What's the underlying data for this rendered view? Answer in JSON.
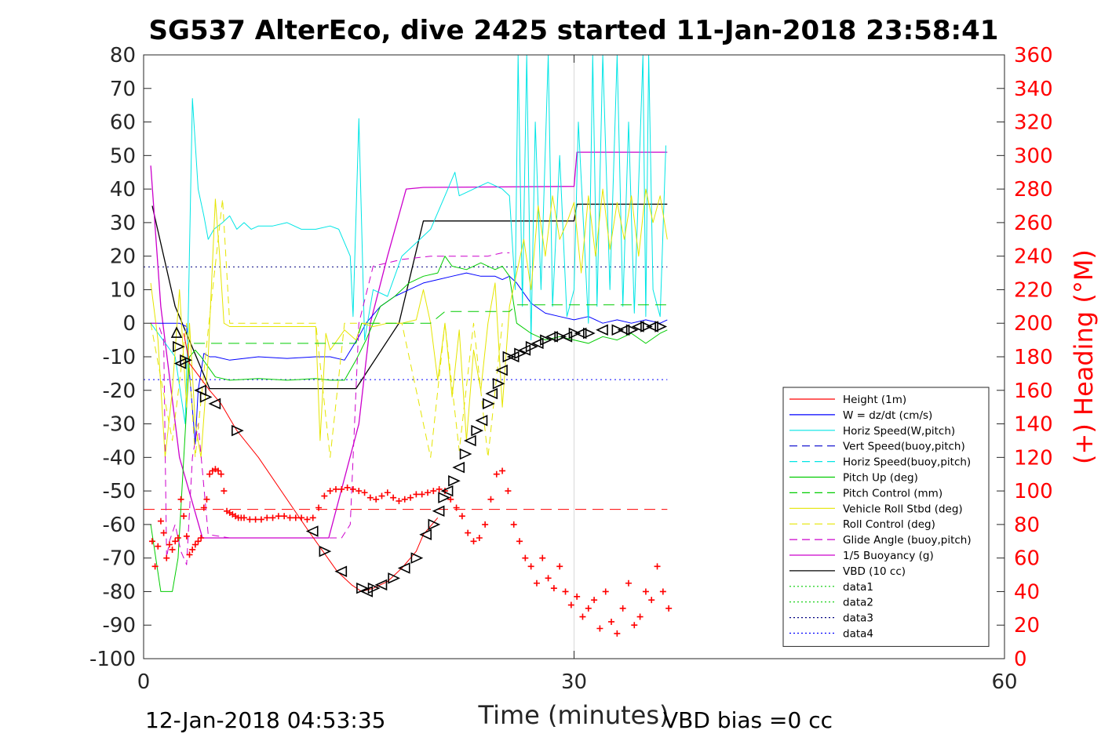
{
  "chart_data": {
    "type": "line",
    "title": "SG537 AlterEco, dive 2425 started 11-Jan-2018 23:58:41",
    "xlabel": "Time (minutes)",
    "ylabel_right": "(+) Heading (°M)",
    "xlim": [
      0,
      60
    ],
    "ylim_left": [
      -100,
      80
    ],
    "ylim_right": [
      0,
      360
    ],
    "x_ticks": [
      "0",
      "30",
      "60"
    ],
    "y_ticks_left": [
      "80",
      "70",
      "60",
      "50",
      "40",
      "30",
      "20",
      "10",
      "0",
      "-10",
      "-20",
      "-30",
      "-40",
      "-50",
      "-60",
      "-70",
      "-80",
      "-90",
      "-100"
    ],
    "y_ticks_right": [
      "360",
      "340",
      "320",
      "300",
      "280",
      "260",
      "240",
      "220",
      "200",
      "180",
      "160",
      "140",
      "120",
      "100",
      "80",
      "60",
      "40",
      "20",
      "0"
    ],
    "grid": "x-only",
    "legend_position": "lower-right",
    "footer_left": "12-Jan-2018 04:53:35",
    "footer_right": "VBD bias =0 cc",
    "legend": [
      {
        "label": "Height (1m)",
        "color": "#ff0000",
        "dash": "solid"
      },
      {
        "label": "W = dz/dt (cm/s)",
        "color": "#0000ff",
        "dash": "solid"
      },
      {
        "label": "Horiz Speed(W,pitch)",
        "color": "#00e5e5",
        "dash": "solid"
      },
      {
        "label": "Vert Speed(buoy,pitch)",
        "color": "#0000cc",
        "dash": "dashed"
      },
      {
        "label": "Horiz Speed(buoy,pitch)",
        "color": "#00e5e5",
        "dash": "dashed"
      },
      {
        "label": "Pitch Up (deg)",
        "color": "#00cc00",
        "dash": "solid"
      },
      {
        "label": "Pitch Control (mm)",
        "color": "#00cc00",
        "dash": "dashed"
      },
      {
        "label": "Vehicle Roll Stbd (deg)",
        "color": "#e5e500",
        "dash": "solid"
      },
      {
        "label": "Roll Control (deg)",
        "color": "#e5e500",
        "dash": "dashed"
      },
      {
        "label": "Glide Angle (buoy,pitch)",
        "color": "#cc00cc",
        "dash": "dashed"
      },
      {
        "label": "1/5 Buoyancy (g)",
        "color": "#cc00cc",
        "dash": "solid"
      },
      {
        "label": "VBD (10 cc)",
        "color": "#000000",
        "dash": "solid"
      },
      {
        "label": "data1",
        "color": "#00cc00",
        "dash": "dotted"
      },
      {
        "label": "data2",
        "color": "#00cc00",
        "dash": "dotted"
      },
      {
        "label": "data3",
        "color": "#000080",
        "dash": "dotted"
      },
      {
        "label": "data4",
        "color": "#0000ff",
        "dash": "dotted"
      }
    ],
    "series": [
      {
        "key": "vbd",
        "color": "#000000",
        "width": 1.3,
        "x": [
          0.6,
          2.2,
          4.6,
          12.0,
          14.8,
          17.8,
          19.5,
          30.0,
          30.2,
          36.5
        ],
        "y": [
          35,
          5,
          -19.5,
          -19.5,
          -19.5,
          0,
          30.5,
          30.5,
          35.5,
          35.5
        ]
      },
      {
        "key": "buoyancy",
        "color": "#cc00cc",
        "width": 1.3,
        "x": [
          0.5,
          1.2,
          2.5,
          4.1,
          10.0,
          12.9,
          15.0,
          15.8,
          17.0,
          18.3,
          19.5,
          30.0,
          30.2,
          36.5
        ],
        "y": [
          47,
          5,
          -40,
          -64,
          -64,
          -64,
          -30,
          0,
          20,
          40,
          40.5,
          40.8,
          51,
          51
        ]
      },
      {
        "key": "w",
        "color": "#0000ff",
        "width": 1.0,
        "x": [
          0.5,
          2.5,
          3.0,
          3.2,
          3.6,
          3.8,
          4.2,
          4.6,
          5.0,
          6.0,
          8.0,
          10.0,
          12.0,
          13.0,
          14.0,
          15.0,
          15.5,
          16.5,
          17.5,
          18.5,
          19.5,
          20.5,
          21.5,
          22.5,
          23.5,
          24.5,
          25.0,
          25.5,
          26.0,
          27.0,
          28.0,
          29.0,
          30.0,
          31.0,
          32.0,
          33.0,
          34.0,
          35.0,
          36.0,
          36.5
        ],
        "y": [
          0,
          0,
          -1,
          -15,
          -36,
          -20,
          -9,
          -10,
          -10,
          -11,
          -10,
          -10.5,
          -10,
          -10,
          -11,
          -4,
          0,
          5,
          8,
          10,
          12,
          13,
          14,
          15,
          14,
          14,
          13,
          14,
          12,
          6,
          3,
          2,
          1,
          2,
          0,
          1,
          0,
          1,
          0,
          1
        ]
      },
      {
        "key": "horiz_w",
        "color": "#00e5e5",
        "width": 1.0,
        "x": [
          0.5,
          2.2,
          2.9,
          3.1,
          3.4,
          3.8,
          4.2,
          4.5,
          4.9,
          5.5,
          6.0,
          6.5,
          7.0,
          7.5,
          8.0,
          9.0,
          10.0,
          11.0,
          12.0,
          13.0,
          13.6,
          14.4,
          14.6,
          15.0,
          15.4,
          16.0,
          17.0,
          18.0,
          19.0,
          20.0,
          21.0,
          21.7,
          22.0,
          23.0,
          24.0,
          25.0,
          25.5,
          25.9,
          26.1,
          26.4,
          26.7,
          27.0,
          27.3,
          27.7,
          28.2,
          28.5,
          29.0,
          29.5,
          30.0,
          30.3,
          31.0,
          31.3,
          31.6,
          32.0,
          32.5,
          33.0,
          33.4,
          33.8,
          34.2,
          34.8,
          35.0,
          35.2,
          35.5,
          36.0,
          36.4
        ],
        "y": [
          0,
          -10,
          -30,
          0,
          67,
          40,
          32,
          25,
          28,
          30,
          32,
          28,
          30,
          28,
          29,
          29,
          30,
          28,
          28,
          29,
          28,
          20,
          2,
          61,
          -5,
          10,
          8,
          20,
          24,
          28,
          38,
          45,
          38,
          40,
          42,
          40,
          38,
          10,
          80,
          5,
          80,
          -5,
          60,
          10,
          80,
          5,
          50,
          2,
          10,
          60,
          0,
          80,
          5,
          80,
          10,
          80,
          5,
          60,
          3,
          80,
          2,
          80,
          10,
          2,
          53
        ]
      },
      {
        "key": "pitch",
        "color": "#00cc00",
        "width": 1.0,
        "x": [
          0.5,
          1.2,
          2.0,
          2.4,
          2.8,
          3.2,
          3.6,
          4.0,
          5.0,
          6.0,
          8.0,
          10.0,
          12.0,
          13.0,
          14.0,
          14.8,
          15.5,
          16.5,
          17.5,
          18.5,
          19.5,
          20.5,
          21.0,
          21.5,
          22.5,
          23.5,
          24.5,
          25.0,
          25.5,
          26.0,
          27.0,
          28.0,
          29.0,
          30.0,
          31.0,
          32.0,
          33.0,
          34.0,
          35.0,
          36.0,
          36.5
        ],
        "y": [
          -60,
          -80,
          -80,
          -70,
          -40,
          -10,
          -8,
          -10,
          -16,
          -17,
          -16.5,
          -17,
          -16.5,
          -17,
          -17,
          -11,
          -5,
          5,
          8,
          12,
          14,
          15,
          20,
          17,
          16,
          18,
          16,
          17,
          14,
          0,
          -3,
          -5,
          -4,
          -5,
          -6,
          -4,
          -5,
          -3,
          -6,
          -3,
          -2
        ]
      },
      {
        "key": "roll",
        "color": "#e5e500",
        "width": 1.0,
        "x": [
          0.5,
          1.0,
          1.5,
          2.0,
          2.5,
          3.0,
          3.2,
          3.6,
          4.0,
          4.5,
          4.8,
          5.0,
          5.3,
          5.6,
          6.0,
          6.5,
          7.0,
          8.0,
          10.0,
          12.0,
          12.3,
          12.7,
          13.0,
          14.0,
          14.8,
          15.2,
          16.0,
          17.0,
          18.0,
          19.0,
          19.5,
          20.0,
          20.5,
          21.0,
          21.5,
          22.0,
          22.5,
          23.0,
          23.5,
          24.0,
          24.5,
          25.0,
          25.5,
          26.0,
          26.5,
          27.0,
          27.5,
          28.0,
          28.5,
          29.0,
          29.5,
          30.0,
          30.5,
          31.0,
          31.5,
          32.0,
          32.5,
          33.0,
          33.5,
          34.0,
          34.5,
          35.0,
          35.5,
          36.0,
          36.5
        ],
        "y": [
          12,
          -5,
          -40,
          -20,
          10,
          -25,
          0,
          -30,
          -40,
          -10,
          18,
          37,
          20,
          0,
          -1,
          -1,
          -1,
          -1,
          -1,
          -1,
          -35,
          -3,
          -8,
          -2,
          -5,
          0,
          -1,
          0,
          0,
          1,
          10,
          0,
          -17,
          0,
          -22,
          -2,
          -35,
          -8,
          -20,
          0,
          12,
          -25,
          5,
          15,
          25,
          10,
          35,
          20,
          38,
          25,
          30,
          36,
          15,
          38,
          20,
          40,
          22,
          36,
          25,
          38,
          20,
          40,
          30,
          38,
          25
        ]
      },
      {
        "key": "glide",
        "color": "#cc00cc",
        "width": 1.0,
        "dash": "9,6",
        "x": [
          0.5,
          1.0,
          1.4,
          1.6,
          1.8,
          2.2,
          2.6,
          3.0,
          3.4,
          3.8,
          4.5,
          6.0,
          10.0,
          13.0,
          13.8,
          14.4,
          15.0,
          16.0,
          18.0,
          20.0,
          22.0,
          24.0,
          25.0,
          25.5
        ],
        "y": [
          0,
          0,
          -5,
          -70,
          -65,
          -60,
          -68,
          -72,
          -40,
          -30,
          -63,
          -64,
          -64,
          -64,
          -64,
          -60,
          0,
          17,
          19,
          20,
          20,
          20,
          21,
          21
        ]
      },
      {
        "key": "roll_ctrl",
        "color": "#e5e500",
        "width": 1.0,
        "dash": "9,6",
        "x": [
          0.5,
          2.0,
          3.0,
          3.6,
          4.5,
          5.5,
          6.0,
          8.0,
          12.0,
          13.0,
          14.0,
          15.0,
          16.0,
          18.0,
          20.0,
          21.0,
          22.0,
          23.0,
          24.0,
          25.0
        ],
        "y": [
          0,
          -35,
          0,
          -40,
          -2,
          37,
          0,
          0,
          0,
          -40,
          0,
          0,
          0,
          0,
          -40,
          0,
          -38,
          0,
          -40,
          0
        ]
      },
      {
        "key": "pitch_ctrl",
        "color": "#00cc00",
        "width": 1.0,
        "dash": "14,8",
        "x": [
          3.5,
          14.8,
          15.2,
          20.0,
          21.0,
          25.5,
          26.0,
          36.5
        ],
        "y": [
          -6,
          -6,
          0,
          0,
          3.5,
          3.5,
          5.5,
          5.5
        ]
      },
      {
        "key": "height_line",
        "color": "#ff0000",
        "width": 1.0,
        "x": [
          2.8,
          3.2,
          4.6,
          5.4,
          6.5,
          8.0,
          11.5,
          12.5,
          13.5,
          14.5,
          15.2,
          16.0,
          17.0,
          18.0,
          19.0,
          19.5,
          20.5
        ],
        "y": [
          -3,
          -12,
          -20,
          -24,
          -32,
          -40,
          -62,
          -68,
          -74,
          -78,
          -80,
          -79,
          -77,
          -73,
          -68,
          -63,
          -58
        ]
      }
    ],
    "hlines": [
      {
        "y": 16.8,
        "color": "#000080",
        "dash": "2,4"
      },
      {
        "y": -16.8,
        "color": "#0000ff",
        "dash": "2,4"
      },
      {
        "y": -55.5,
        "color": "#ff0000",
        "dash": "14,8"
      }
    ],
    "heading_points": {
      "color": "#ff0000",
      "x": [
        0.6,
        0.8,
        1.0,
        1.2,
        1.4,
        1.6,
        1.8,
        2.0,
        2.2,
        2.4,
        2.6,
        2.8,
        3.0,
        3.2,
        3.4,
        3.6,
        3.8,
        4.0,
        4.2,
        4.4,
        4.6,
        4.8,
        5.0,
        5.2,
        5.4,
        5.6,
        5.8,
        6.0,
        6.2,
        6.4,
        6.6,
        6.8,
        7.0,
        7.4,
        7.8,
        8.2,
        8.6,
        9.0,
        9.4,
        9.8,
        10.2,
        10.6,
        11.0,
        11.4,
        11.8,
        12.2,
        12.6,
        13.0,
        13.4,
        13.8,
        14.2,
        14.6,
        15.0,
        15.4,
        15.8,
        16.2,
        16.6,
        17.0,
        17.4,
        17.8,
        18.2,
        18.6,
        19.0,
        19.4,
        19.8,
        20.2,
        20.6,
        21.0,
        21.4,
        21.8,
        22.2,
        22.6,
        23.0,
        23.4,
        23.8,
        24.2,
        24.6,
        25.0,
        25.4,
        25.8,
        26.2,
        26.6,
        27.0,
        27.4,
        27.8,
        28.2,
        28.6,
        29.0,
        29.4,
        29.8,
        30.2,
        30.6,
        31.0,
        31.4,
        31.8,
        32.2,
        32.6,
        33.0,
        33.4,
        33.8,
        34.2,
        34.6,
        35.0,
        35.4,
        35.8,
        36.2,
        36.6
      ],
      "y": [
        70,
        55,
        67,
        82,
        75,
        60,
        68,
        65,
        70,
        72,
        95,
        85,
        73,
        62,
        65,
        68,
        70,
        72,
        90,
        95,
        110,
        112,
        113,
        112,
        110,
        100,
        88,
        87,
        86,
        85,
        84,
        84,
        84,
        83,
        83,
        83,
        84,
        84,
        85,
        85,
        84,
        84,
        84,
        83,
        84,
        90,
        97,
        100,
        101,
        101,
        102,
        101,
        100,
        99,
        96,
        95,
        97,
        99,
        96,
        94,
        95,
        96,
        98,
        98,
        99,
        100,
        101,
        100,
        95,
        90,
        85,
        75,
        70,
        72,
        80,
        95,
        110,
        112,
        100,
        80,
        70,
        60,
        55,
        45,
        60,
        48,
        42,
        55,
        40,
        32,
        37,
        25,
        30,
        35,
        18,
        40,
        22,
        15,
        30,
        45,
        20,
        25,
        40,
        35,
        55,
        40,
        30
      ]
    },
    "markers": {
      "color": "#000000",
      "x": [
        2.3,
        2.4,
        2.6,
        2.9,
        4.0,
        4.3,
        5.0,
        6.5,
        11.8,
        12.6,
        13.8,
        15.2,
        15.6,
        16.0,
        16.6,
        17.4,
        18.2,
        19.0,
        19.7,
        20.2,
        20.6,
        20.9,
        21.2,
        21.6,
        22.0,
        22.4,
        22.8,
        23.2,
        23.6,
        24.0,
        24.3,
        24.7,
        25.0,
        25.4,
        25.8,
        26.2,
        26.6,
        27.0,
        27.5,
        28.0,
        28.5,
        29.0,
        29.5,
        30.0,
        30.5,
        31.0,
        32.0,
        33.0,
        33.5,
        34.0,
        34.5,
        35.0,
        35.5,
        36.0
      ],
      "y": [
        -3,
        -7,
        -12,
        -11,
        -20,
        -22,
        -24,
        -32,
        -62,
        -68,
        -74,
        -79,
        -80,
        -79,
        -78,
        -76,
        -73,
        -70,
        -63,
        -60,
        -56,
        -52,
        -50,
        -47,
        -43,
        -39,
        -35,
        -32,
        -29,
        -24,
        -21,
        -18,
        -14,
        -10,
        -10,
        -9,
        -8,
        -7,
        -6,
        -5,
        -4,
        -4,
        -4,
        -3,
        -3,
        -3,
        -2,
        -2,
        -2,
        -2,
        -1,
        -1,
        -1,
        -1
      ]
    }
  }
}
